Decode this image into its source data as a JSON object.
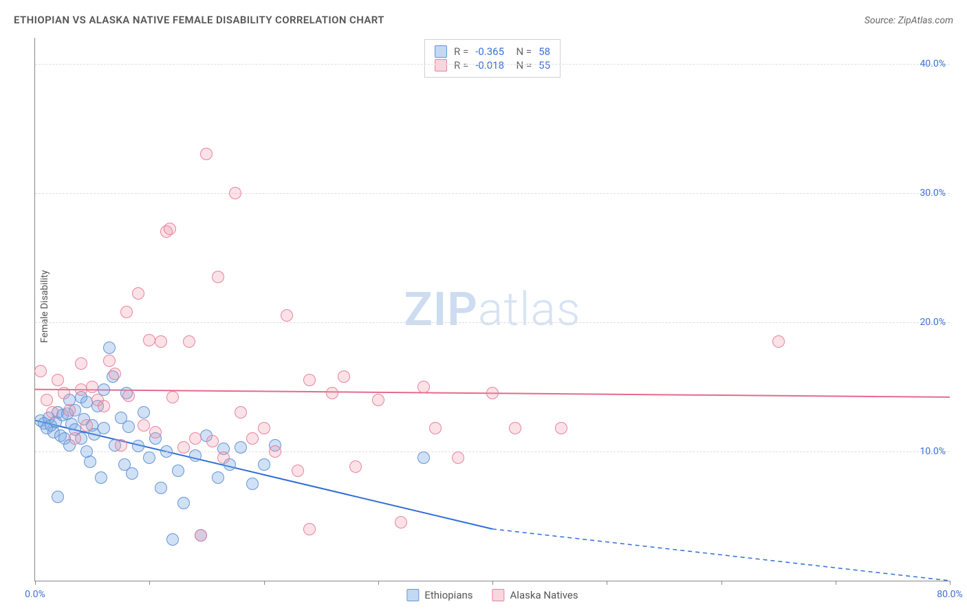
{
  "title": "ETHIOPIAN VS ALASKA NATIVE FEMALE DISABILITY CORRELATION CHART",
  "source": "Source: ZipAtlas.com",
  "ylabel": "Female Disability",
  "watermark": {
    "bold": "ZIP",
    "rest": "atlas"
  },
  "chart": {
    "type": "scatter",
    "xlim": [
      0,
      80
    ],
    "ylim": [
      0,
      42
    ],
    "xticks": [
      0,
      10,
      20,
      30,
      40,
      50,
      60,
      70,
      80
    ],
    "xtick_labels": {
      "0": "0.0%",
      "80": "80.0%"
    },
    "yticks": [
      10,
      20,
      30,
      40
    ],
    "ytick_labels": {
      "10": "10.0%",
      "20": "20.0%",
      "30": "30.0%",
      "40": "40.0%"
    },
    "grid_color": "#dddddd",
    "axis_color": "#888888",
    "tick_color": "#3b6fd8",
    "background_color": "#ffffff",
    "marker_radius": 9
  },
  "series": [
    {
      "name": "Ethiopians",
      "color_fill": "rgba(120,170,230,0.35)",
      "color_stroke": "rgba(90,140,210,0.9)",
      "trend_color": "#2e6bd6",
      "R": "-0.365",
      "N": "58",
      "trend": {
        "x1": 0,
        "y1": 12.4,
        "x2_solid": 40,
        "y2_solid": 4.0,
        "x2": 80,
        "y2": 0.0
      },
      "points": [
        [
          0.5,
          12.4
        ],
        [
          0.8,
          12.2
        ],
        [
          1.0,
          11.8
        ],
        [
          1.2,
          12.6
        ],
        [
          1.4,
          12.0
        ],
        [
          1.6,
          11.5
        ],
        [
          1.8,
          12.3
        ],
        [
          2.0,
          13.0
        ],
        [
          2.2,
          11.2
        ],
        [
          2.4,
          12.8
        ],
        [
          2.6,
          11.0
        ],
        [
          2.8,
          12.9
        ],
        [
          3.0,
          10.5
        ],
        [
          3.2,
          12.1
        ],
        [
          3.5,
          13.2
        ],
        [
          3.5,
          11.7
        ],
        [
          4.0,
          11.0
        ],
        [
          4.0,
          14.2
        ],
        [
          4.3,
          12.5
        ],
        [
          4.5,
          10.0
        ],
        [
          4.8,
          9.2
        ],
        [
          5.0,
          12.0
        ],
        [
          5.2,
          11.3
        ],
        [
          5.5,
          13.5
        ],
        [
          5.8,
          8.0
        ],
        [
          6.0,
          11.8
        ],
        [
          6.5,
          18.0
        ],
        [
          6.8,
          15.8
        ],
        [
          7.0,
          10.5
        ],
        [
          7.5,
          12.6
        ],
        [
          7.8,
          9.0
        ],
        [
          8.0,
          14.5
        ],
        [
          8.2,
          11.9
        ],
        [
          8.5,
          8.3
        ],
        [
          9.0,
          10.4
        ],
        [
          9.5,
          13.0
        ],
        [
          10.0,
          9.5
        ],
        [
          10.5,
          11.0
        ],
        [
          11.0,
          7.2
        ],
        [
          11.5,
          10.0
        ],
        [
          12.0,
          3.2
        ],
        [
          12.5,
          8.5
        ],
        [
          13.0,
          6.0
        ],
        [
          14.0,
          9.7
        ],
        [
          14.5,
          3.5
        ],
        [
          15.0,
          11.2
        ],
        [
          16.0,
          8.0
        ],
        [
          16.5,
          10.2
        ],
        [
          17.0,
          9.0
        ],
        [
          18.0,
          10.3
        ],
        [
          19.0,
          7.5
        ],
        [
          20.0,
          9.0
        ],
        [
          21.0,
          10.5
        ],
        [
          34.0,
          9.5
        ],
        [
          2.0,
          6.5
        ],
        [
          3.0,
          14.0
        ],
        [
          4.5,
          13.8
        ],
        [
          6.0,
          14.8
        ]
      ]
    },
    {
      "name": "Alaska Natives",
      "color_fill": "rgba(240,150,170,0.28)",
      "color_stroke": "rgba(230,120,150,0.9)",
      "trend_color": "#e36a8c",
      "R": "-0.018",
      "N": "55",
      "trend": {
        "x1": 0,
        "y1": 14.8,
        "x2_solid": 80,
        "y2_solid": 14.2,
        "x2": 80,
        "y2": 14.2
      },
      "points": [
        [
          0.5,
          16.2
        ],
        [
          1.0,
          14.0
        ],
        [
          1.5,
          13.0
        ],
        [
          2.0,
          15.5
        ],
        [
          2.5,
          14.5
        ],
        [
          3.0,
          13.2
        ],
        [
          3.5,
          11.0
        ],
        [
          4.0,
          14.8
        ],
        [
          4.0,
          16.8
        ],
        [
          4.5,
          12.0
        ],
        [
          5.0,
          15.0
        ],
        [
          5.5,
          14.0
        ],
        [
          6.0,
          13.5
        ],
        [
          6.5,
          17.0
        ],
        [
          7.0,
          16.0
        ],
        [
          7.5,
          10.5
        ],
        [
          8.0,
          20.8
        ],
        [
          8.2,
          14.3
        ],
        [
          9.0,
          22.2
        ],
        [
          9.5,
          12.0
        ],
        [
          10.0,
          18.6
        ],
        [
          10.5,
          11.5
        ],
        [
          11.0,
          18.5
        ],
        [
          11.5,
          27.0
        ],
        [
          11.8,
          27.2
        ],
        [
          12.0,
          14.2
        ],
        [
          13.0,
          10.3
        ],
        [
          13.5,
          18.5
        ],
        [
          14.0,
          11.0
        ],
        [
          14.5,
          3.5
        ],
        [
          15.0,
          33.0
        ],
        [
          15.5,
          10.8
        ],
        [
          16.0,
          23.5
        ],
        [
          16.5,
          9.5
        ],
        [
          17.5,
          30.0
        ],
        [
          18.0,
          13.0
        ],
        [
          19.0,
          11.0
        ],
        [
          20.0,
          11.8
        ],
        [
          21.0,
          10.0
        ],
        [
          22.0,
          20.5
        ],
        [
          23.0,
          8.5
        ],
        [
          24.0,
          15.5
        ],
        [
          26.0,
          14.5
        ],
        [
          27.0,
          15.8
        ],
        [
          28.0,
          8.8
        ],
        [
          30.0,
          14.0
        ],
        [
          32.0,
          4.5
        ],
        [
          34.0,
          15.0
        ],
        [
          35.0,
          11.8
        ],
        [
          37.0,
          9.5
        ],
        [
          40.0,
          14.5
        ],
        [
          42.0,
          11.8
        ],
        [
          46.0,
          11.8
        ],
        [
          65.0,
          18.5
        ],
        [
          24.0,
          4.0
        ]
      ]
    }
  ],
  "legend_bottom": [
    {
      "label": "Ethiopians",
      "swatch": "a"
    },
    {
      "label": "Alaska Natives",
      "swatch": "b"
    }
  ]
}
